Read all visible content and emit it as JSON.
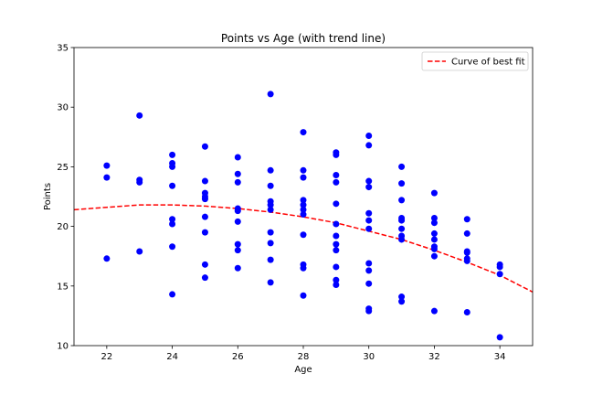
{
  "chart_data": {
    "type": "scatter",
    "title": "Points vs Age (with trend line)",
    "xlabel": "Age",
    "ylabel": "Points",
    "xlim": [
      21,
      35
    ],
    "ylim": [
      10,
      35
    ],
    "xticks": [
      22,
      24,
      26,
      28,
      30,
      32,
      34
    ],
    "yticks": [
      10,
      15,
      20,
      25,
      30,
      35
    ],
    "grid": false,
    "legend_position": "top-right",
    "colors": {
      "points": "#0000ff",
      "trend": "#ff0000"
    },
    "series": [
      {
        "kind": "scatter",
        "points": [
          [
            22,
            25.1
          ],
          [
            22,
            24.1
          ],
          [
            22,
            17.3
          ],
          [
            23,
            29.3
          ],
          [
            23,
            23.9
          ],
          [
            23,
            23.7
          ],
          [
            23,
            17.9
          ],
          [
            24,
            26.0
          ],
          [
            24,
            25.3
          ],
          [
            24,
            25.0
          ],
          [
            24,
            23.4
          ],
          [
            24,
            20.6
          ],
          [
            24,
            20.2
          ],
          [
            24,
            18.3
          ],
          [
            24,
            14.3
          ],
          [
            25,
            26.7
          ],
          [
            25,
            23.8
          ],
          [
            25,
            22.8
          ],
          [
            25,
            22.5
          ],
          [
            25,
            22.3
          ],
          [
            25,
            20.8
          ],
          [
            25,
            19.5
          ],
          [
            25,
            16.8
          ],
          [
            25,
            15.7
          ],
          [
            26,
            25.8
          ],
          [
            26,
            24.4
          ],
          [
            26,
            23.7
          ],
          [
            26,
            21.5
          ],
          [
            26,
            21.3
          ],
          [
            26,
            20.4
          ],
          [
            26,
            18.5
          ],
          [
            26,
            18.0
          ],
          [
            26,
            16.5
          ],
          [
            27,
            31.1
          ],
          [
            27,
            24.7
          ],
          [
            27,
            23.4
          ],
          [
            27,
            22.1
          ],
          [
            27,
            21.8
          ],
          [
            27,
            21.4
          ],
          [
            27,
            19.5
          ],
          [
            27,
            18.6
          ],
          [
            27,
            17.2
          ],
          [
            27,
            15.3
          ],
          [
            28,
            27.9
          ],
          [
            28,
            24.7
          ],
          [
            28,
            24.1
          ],
          [
            28,
            22.2
          ],
          [
            28,
            21.8
          ],
          [
            28,
            21.4
          ],
          [
            28,
            21.0
          ],
          [
            28,
            19.3
          ],
          [
            28,
            16.8
          ],
          [
            28,
            16.5
          ],
          [
            28,
            14.2
          ],
          [
            29,
            26.2
          ],
          [
            29,
            26.0
          ],
          [
            29,
            24.3
          ],
          [
            29,
            23.7
          ],
          [
            29,
            21.9
          ],
          [
            29,
            20.2
          ],
          [
            29,
            19.2
          ],
          [
            29,
            18.5
          ],
          [
            29,
            18.0
          ],
          [
            29,
            16.6
          ],
          [
            29,
            15.5
          ],
          [
            29,
            15.1
          ],
          [
            30,
            27.6
          ],
          [
            30,
            26.8
          ],
          [
            30,
            23.8
          ],
          [
            30,
            23.3
          ],
          [
            30,
            21.1
          ],
          [
            30,
            20.5
          ],
          [
            30,
            19.8
          ],
          [
            30,
            16.9
          ],
          [
            30,
            16.3
          ],
          [
            30,
            15.2
          ],
          [
            30,
            13.1
          ],
          [
            30,
            12.9
          ],
          [
            31,
            25.0
          ],
          [
            31,
            23.6
          ],
          [
            31,
            22.2
          ],
          [
            31,
            20.7
          ],
          [
            31,
            20.5
          ],
          [
            31,
            19.8
          ],
          [
            31,
            19.2
          ],
          [
            31,
            18.9
          ],
          [
            31,
            14.1
          ],
          [
            31,
            13.7
          ],
          [
            32,
            22.8
          ],
          [
            32,
            20.7
          ],
          [
            32,
            20.3
          ],
          [
            32,
            19.4
          ],
          [
            32,
            18.9
          ],
          [
            32,
            18.3
          ],
          [
            32,
            18.1
          ],
          [
            32,
            17.5
          ],
          [
            32,
            12.9
          ],
          [
            33,
            20.6
          ],
          [
            33,
            19.4
          ],
          [
            33,
            17.9
          ],
          [
            33,
            17.8
          ],
          [
            33,
            17.3
          ],
          [
            33,
            17.1
          ],
          [
            33,
            12.8
          ],
          [
            34,
            16.8
          ],
          [
            34,
            16.6
          ],
          [
            34,
            16.0
          ],
          [
            34,
            10.7
          ]
        ]
      },
      {
        "kind": "line",
        "name": "Curve of best fit",
        "style": "dashed",
        "x": [
          21,
          22,
          23,
          24,
          25,
          26,
          27,
          28,
          29,
          30,
          31,
          32,
          33,
          34,
          35
        ],
        "y": [
          21.4,
          21.6,
          21.8,
          21.8,
          21.7,
          21.5,
          21.2,
          20.8,
          20.3,
          19.6,
          18.9,
          18.0,
          17.0,
          15.9,
          14.5
        ]
      }
    ]
  }
}
